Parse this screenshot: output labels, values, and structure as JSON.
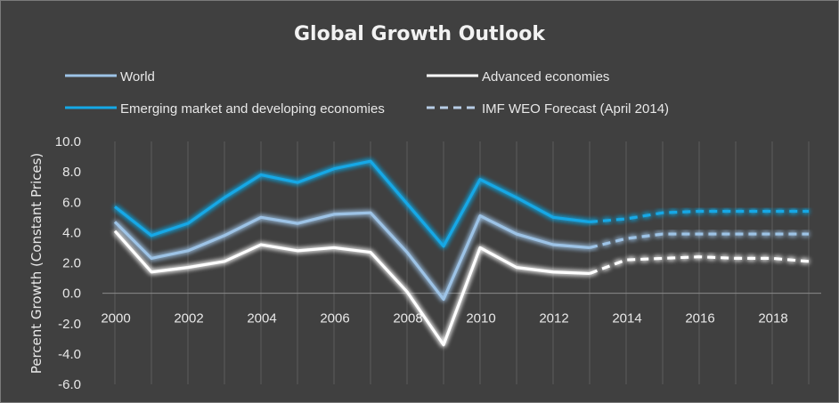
{
  "chart_data": {
    "type": "line",
    "title": "Global Growth Outlook",
    "xlabel": "",
    "ylabel": "Percent Growth (Constant Prices)",
    "ylim": [
      -6,
      10
    ],
    "xlim": [
      2000,
      2019
    ],
    "x_ticks": [
      2000,
      2002,
      2004,
      2006,
      2008,
      2010,
      2012,
      2014,
      2016,
      2018
    ],
    "y_ticks": [
      "10.0",
      "8.0",
      "6.0",
      "4.0",
      "2.0",
      "0.0",
      "-2.0",
      "-4.0",
      "-6.0"
    ],
    "grid": "vertical",
    "legend_position": "top",
    "legend": [
      {
        "label": "World",
        "color": "#9dc3e6",
        "style": "solid"
      },
      {
        "label": "Advanced economies",
        "color": "#ffffff",
        "style": "solid"
      },
      {
        "label": "Emerging market and developing economies",
        "color": "#14a8e6",
        "style": "solid"
      },
      {
        "label": "IMF WEO Forecast (April 2014)",
        "color": "#b7cde6",
        "style": "dashed"
      }
    ],
    "series": [
      {
        "name": "World",
        "color": "#9dc3e6",
        "actual": {
          "x": [
            2000,
            2001,
            2002,
            2003,
            2004,
            2005,
            2006,
            2007,
            2008,
            2009,
            2010,
            2011,
            2012,
            2013
          ],
          "y": [
            4.7,
            2.3,
            2.8,
            3.8,
            5.0,
            4.6,
            5.2,
            5.3,
            2.7,
            -0.4,
            5.1,
            3.9,
            3.2,
            3.0
          ]
        },
        "forecast": {
          "x": [
            2013,
            2014,
            2015,
            2016,
            2017,
            2018,
            2019
          ],
          "y": [
            3.0,
            3.6,
            3.9,
            3.9,
            3.9,
            3.9,
            3.9
          ]
        }
      },
      {
        "name": "Advanced economies",
        "color": "#ffffff",
        "actual": {
          "x": [
            2000,
            2001,
            2002,
            2003,
            2004,
            2005,
            2006,
            2007,
            2008,
            2009,
            2010,
            2011,
            2012,
            2013
          ],
          "y": [
            4.1,
            1.4,
            1.7,
            2.1,
            3.2,
            2.8,
            3.0,
            2.7,
            0.1,
            -3.4,
            3.0,
            1.7,
            1.4,
            1.3
          ]
        },
        "forecast": {
          "x": [
            2013,
            2014,
            2015,
            2016,
            2017,
            2018,
            2019
          ],
          "y": [
            1.3,
            2.2,
            2.3,
            2.4,
            2.3,
            2.3,
            2.1
          ]
        }
      },
      {
        "name": "Emerging market and developing economies",
        "color": "#14a8e6",
        "actual": {
          "x": [
            2000,
            2001,
            2002,
            2003,
            2004,
            2005,
            2006,
            2007,
            2008,
            2009,
            2010,
            2011,
            2012,
            2013
          ],
          "y": [
            5.7,
            3.8,
            4.6,
            6.3,
            7.8,
            7.3,
            8.2,
            8.7,
            5.9,
            3.1,
            7.5,
            6.3,
            5.0,
            4.7
          ]
        },
        "forecast": {
          "x": [
            2013,
            2014,
            2015,
            2016,
            2017,
            2018,
            2019
          ],
          "y": [
            4.7,
            4.9,
            5.3,
            5.4,
            5.4,
            5.4,
            5.4
          ]
        }
      }
    ]
  }
}
